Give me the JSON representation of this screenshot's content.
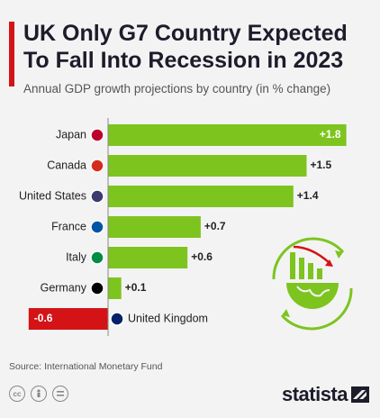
{
  "header": {
    "title": "UK Only G7 Country Expected To Fall Into Recession in 2023",
    "subtitle": "Annual GDP growth projections by country (in % change)"
  },
  "chart_data": {
    "type": "bar",
    "orientation": "horizontal",
    "title": "UK Only G7 Country Expected To Fall Into Recession in 2023",
    "subtitle": "Annual GDP growth projections by country (in % change)",
    "categories": [
      "Japan",
      "Canada",
      "United States",
      "France",
      "Italy",
      "Germany",
      "United Kingdom"
    ],
    "values": [
      1.8,
      1.5,
      1.4,
      0.7,
      0.6,
      0.1,
      -0.6
    ],
    "value_labels": [
      "+1.8",
      "+1.5",
      "+1.4",
      "+0.7",
      "+0.6",
      "+0.1",
      "-0.6"
    ],
    "positive_color": "#7dc41f",
    "negative_color": "#d41317",
    "xlim": [
      -0.6,
      1.8
    ],
    "grid": false,
    "legend": false
  },
  "footer": {
    "source": "Source: International Monetary Fund",
    "license_icons": [
      "cc-icon",
      "attribution-icon",
      "no-derivatives-icon"
    ],
    "logo_text": "statista"
  },
  "illustration_icon": "recession-globe-icon"
}
